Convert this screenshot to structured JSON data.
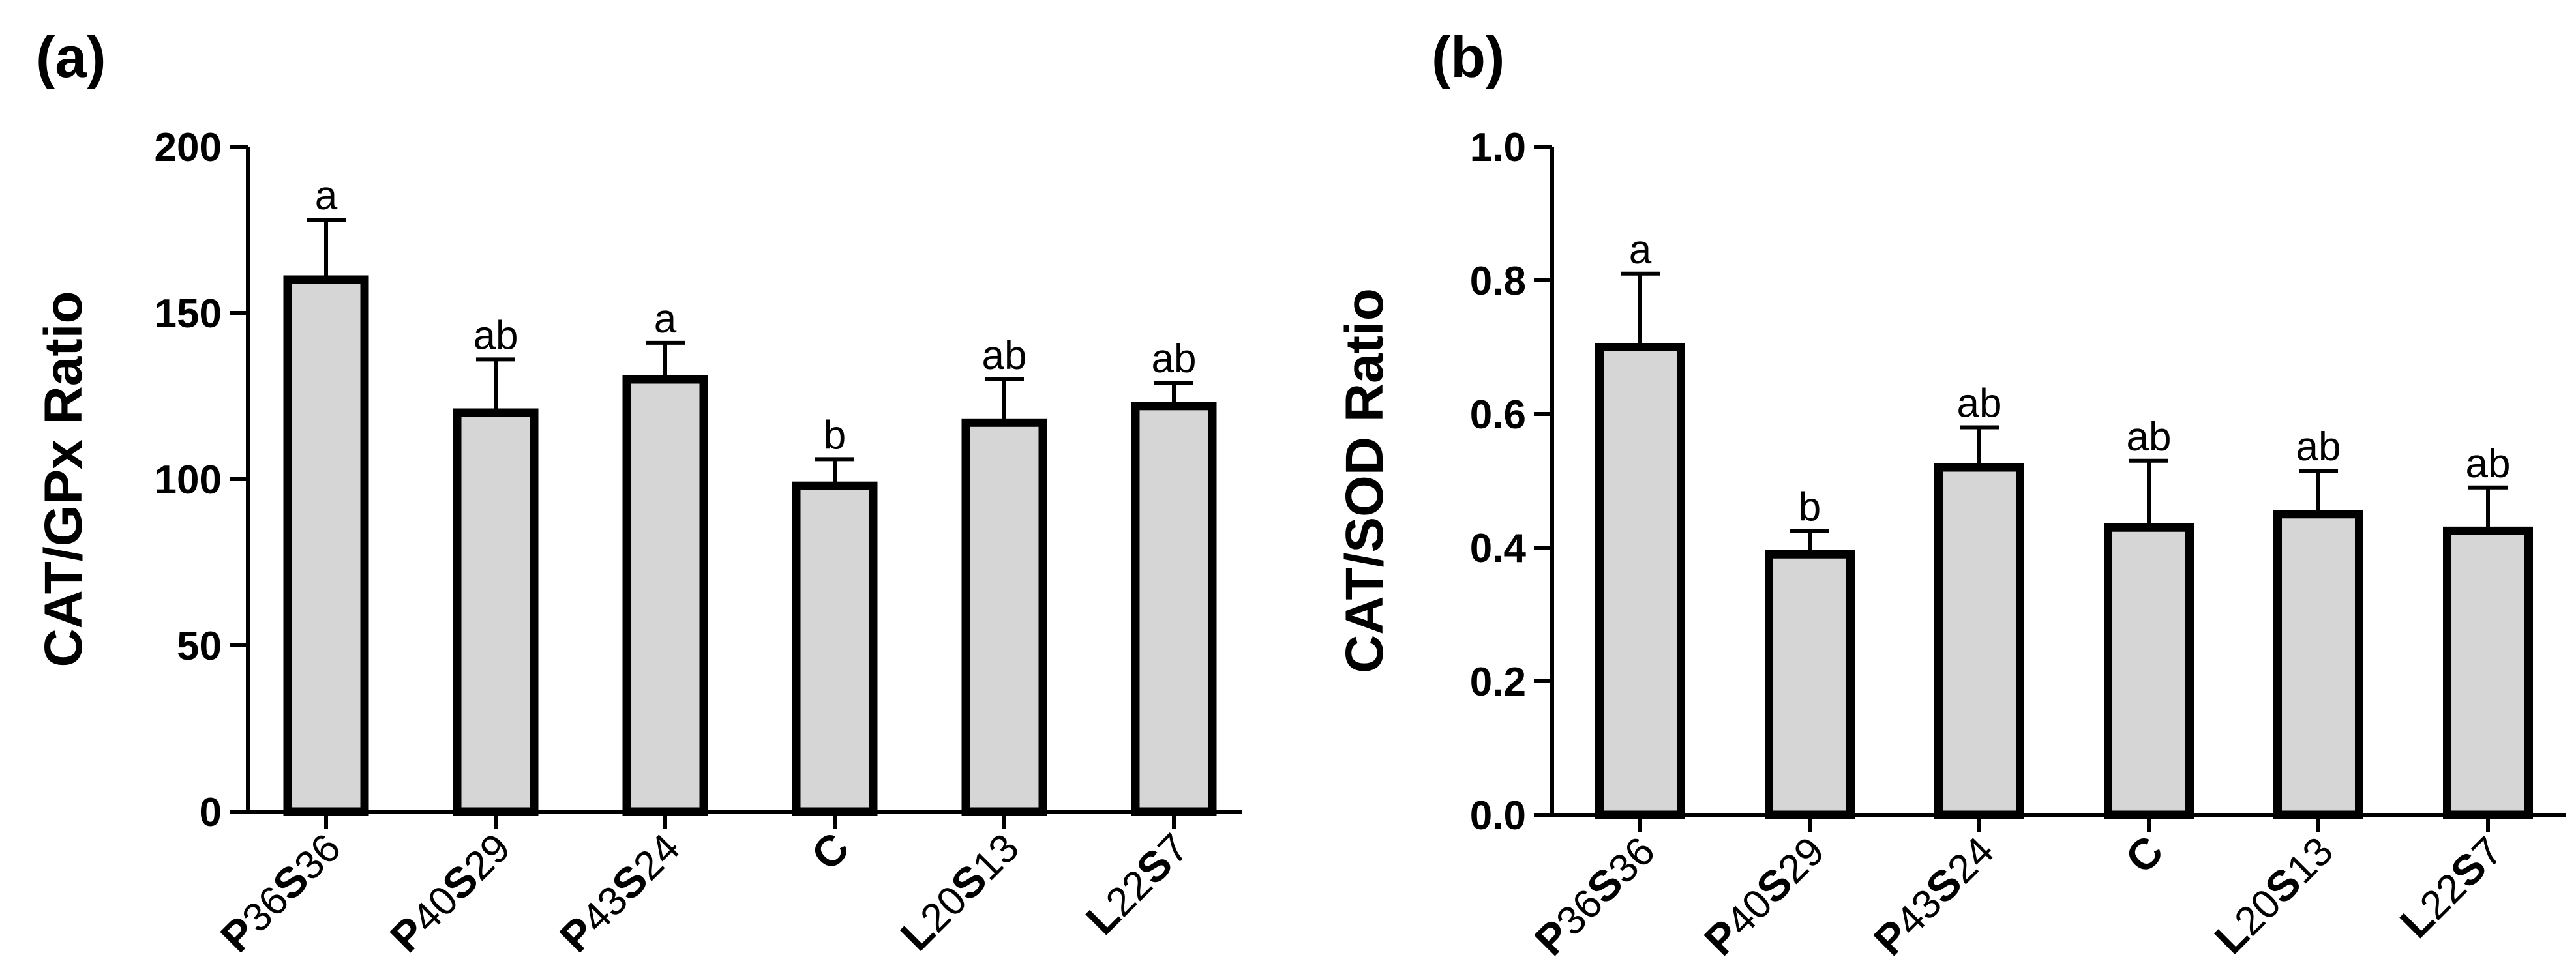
{
  "chart_data": [
    {
      "type": "bar",
      "panel_label": "(a)",
      "ylabel": "CAT/GPx Ratio",
      "xlabel": "",
      "ylim": [
        0,
        200
      ],
      "yticks": [
        0,
        50,
        100,
        150,
        200
      ],
      "ytick_labels": [
        "0",
        "50",
        "100",
        "150",
        "200"
      ],
      "categories": [
        {
          "parts": [
            {
              "t": "P",
              "w": "bold"
            },
            {
              "t": "36",
              "w": "light"
            },
            {
              "t": "S",
              "w": "bold"
            },
            {
              "t": "36",
              "w": "light"
            }
          ]
        },
        {
          "parts": [
            {
              "t": "P",
              "w": "bold"
            },
            {
              "t": "40",
              "w": "light"
            },
            {
              "t": "S",
              "w": "bold"
            },
            {
              "t": "29",
              "w": "light"
            }
          ]
        },
        {
          "parts": [
            {
              "t": "P",
              "w": "bold"
            },
            {
              "t": "43",
              "w": "light"
            },
            {
              "t": "S",
              "w": "bold"
            },
            {
              "t": "24",
              "w": "light"
            }
          ]
        },
        {
          "parts": [
            {
              "t": "C",
              "w": "bold"
            }
          ]
        },
        {
          "parts": [
            {
              "t": "L",
              "w": "bold"
            },
            {
              "t": "20",
              "w": "light"
            },
            {
              "t": "S",
              "w": "bold"
            },
            {
              "t": "13",
              "w": "light"
            }
          ]
        },
        {
          "parts": [
            {
              "t": "L",
              "w": "bold"
            },
            {
              "t": "22",
              "w": "light"
            },
            {
              "t": "S",
              "w": "bold"
            },
            {
              "t": "7",
              "w": "light"
            }
          ]
        }
      ],
      "values": [
        160,
        120,
        130,
        98,
        117,
        122
      ],
      "errors": [
        18,
        16,
        11,
        8,
        13,
        7
      ],
      "significance_labels": [
        "a",
        "ab",
        "a",
        "b",
        "ab",
        "ab"
      ],
      "bar_color": "#d6d6d6",
      "edge_color": "#000000",
      "grid": false
    },
    {
      "type": "bar",
      "panel_label": "(b)",
      "ylabel": "CAT/SOD Ratio",
      "xlabel": "",
      "ylim": [
        0,
        1.0
      ],
      "yticks": [
        0,
        0.2,
        0.4,
        0.6,
        0.8,
        1.0
      ],
      "ytick_labels": [
        "0.0",
        "0.2",
        "0.4",
        "0.6",
        "0.8",
        "1.0"
      ],
      "categories": [
        {
          "parts": [
            {
              "t": "P",
              "w": "bold"
            },
            {
              "t": "36",
              "w": "light"
            },
            {
              "t": "S",
              "w": "bold"
            },
            {
              "t": "36",
              "w": "light"
            }
          ]
        },
        {
          "parts": [
            {
              "t": "P",
              "w": "bold"
            },
            {
              "t": "40",
              "w": "light"
            },
            {
              "t": "S",
              "w": "bold"
            },
            {
              "t": "29",
              "w": "light"
            }
          ]
        },
        {
          "parts": [
            {
              "t": "P",
              "w": "bold"
            },
            {
              "t": "43",
              "w": "light"
            },
            {
              "t": "S",
              "w": "bold"
            },
            {
              "t": "24",
              "w": "light"
            }
          ]
        },
        {
          "parts": [
            {
              "t": "C",
              "w": "bold"
            }
          ]
        },
        {
          "parts": [
            {
              "t": "L",
              "w": "bold"
            },
            {
              "t": "20",
              "w": "light"
            },
            {
              "t": "S",
              "w": "bold"
            },
            {
              "t": "13",
              "w": "light"
            }
          ]
        },
        {
          "parts": [
            {
              "t": "L",
              "w": "bold"
            },
            {
              "t": "22",
              "w": "light"
            },
            {
              "t": "S",
              "w": "bold"
            },
            {
              "t": "7",
              "w": "light"
            }
          ]
        }
      ],
      "values": [
        0.7,
        0.39,
        0.52,
        0.43,
        0.45,
        0.425
      ],
      "errors": [
        0.11,
        0.035,
        0.06,
        0.1,
        0.065,
        0.065
      ],
      "significance_labels": [
        "a",
        "b",
        "ab",
        "ab",
        "ab",
        "ab"
      ],
      "bar_color": "#d6d6d6",
      "edge_color": "#000000",
      "grid": false
    }
  ]
}
